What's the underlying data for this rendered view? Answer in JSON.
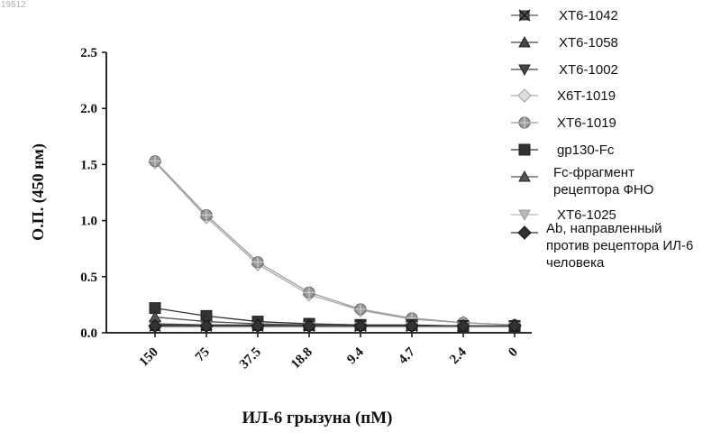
{
  "page_id": "19512",
  "chart_data": {
    "type": "line",
    "title": "",
    "xlabel": "ИЛ-6 грызуна (пМ)",
    "ylabel": "О.П. (450 нм)",
    "categories": [
      "150",
      "75",
      "37.5",
      "18.8",
      "9.4",
      "4.7",
      "2.4",
      "0"
    ],
    "y_ticks": [
      "0.0",
      "0.5",
      "1.0",
      "1.5",
      "2.0",
      "2.5"
    ],
    "ylim": [
      0,
      2.5
    ],
    "grid": false,
    "legend_position": "right",
    "series": [
      {
        "name": "XT6-1042",
        "marker": "sq-x",
        "color": "#555555",
        "values": [
          0.06,
          0.06,
          0.06,
          0.06,
          0.06,
          0.06,
          0.06,
          0.06
        ]
      },
      {
        "name": "XT6-1058",
        "marker": "triangle",
        "color": "#444444",
        "values": [
          0.08,
          0.07,
          0.07,
          0.06,
          0.06,
          0.06,
          0.06,
          0.06
        ]
      },
      {
        "name": "XT6-1002",
        "marker": "tri-down",
        "color": "#444444",
        "values": [
          0.07,
          0.06,
          0.06,
          0.06,
          0.06,
          0.06,
          0.06,
          0.06
        ]
      },
      {
        "name": "X6T-1019",
        "marker": "diamond-open",
        "color": "#aaaaaa",
        "values": [
          1.52,
          1.03,
          0.61,
          0.34,
          0.2,
          0.12,
          0.09,
          0.07
        ]
      },
      {
        "name": "XT6-1019",
        "marker": "circle-dot",
        "color": "#999999",
        "values": [
          1.53,
          1.05,
          0.63,
          0.36,
          0.21,
          0.13,
          0.09,
          0.07
        ]
      },
      {
        "name": "gp130-Fc",
        "marker": "square",
        "color": "#333333",
        "values": [
          0.22,
          0.15,
          0.1,
          0.08,
          0.07,
          0.07,
          0.06,
          0.06
        ]
      },
      {
        "name": "Fc-фрагмент рецептора ФНО",
        "marker": "triangle",
        "color": "#555555",
        "values": [
          0.14,
          0.1,
          0.08,
          0.07,
          0.06,
          0.06,
          0.06,
          0.06
        ]
      },
      {
        "name": "XT6-1025",
        "marker": "tri-down-light",
        "color": "#bbbbbb",
        "values": [
          0.05,
          0.05,
          0.05,
          0.05,
          0.05,
          0.05,
          0.05,
          0.05
        ]
      },
      {
        "name": "Ab, направленный против рецептора ИЛ-6 человека",
        "marker": "diamond",
        "color": "#333333",
        "values": [
          0.06,
          0.06,
          0.06,
          0.06,
          0.06,
          0.06,
          0.06,
          0.06
        ]
      }
    ]
  },
  "legend_lines": [
    [
      "XT6-1042"
    ],
    [
      "XT6-1058"
    ],
    [
      "XT6-1002"
    ],
    [
      "X6T-1019"
    ],
    [
      "XT6-1019"
    ],
    [
      "gp130-Fc"
    ],
    [
      "Fc-фрагмент",
      "рецептора ФНО"
    ],
    [
      "XT6-1025"
    ],
    [
      "Ab, направленный",
      "против рецептора ИЛ-6",
      "человека"
    ]
  ]
}
